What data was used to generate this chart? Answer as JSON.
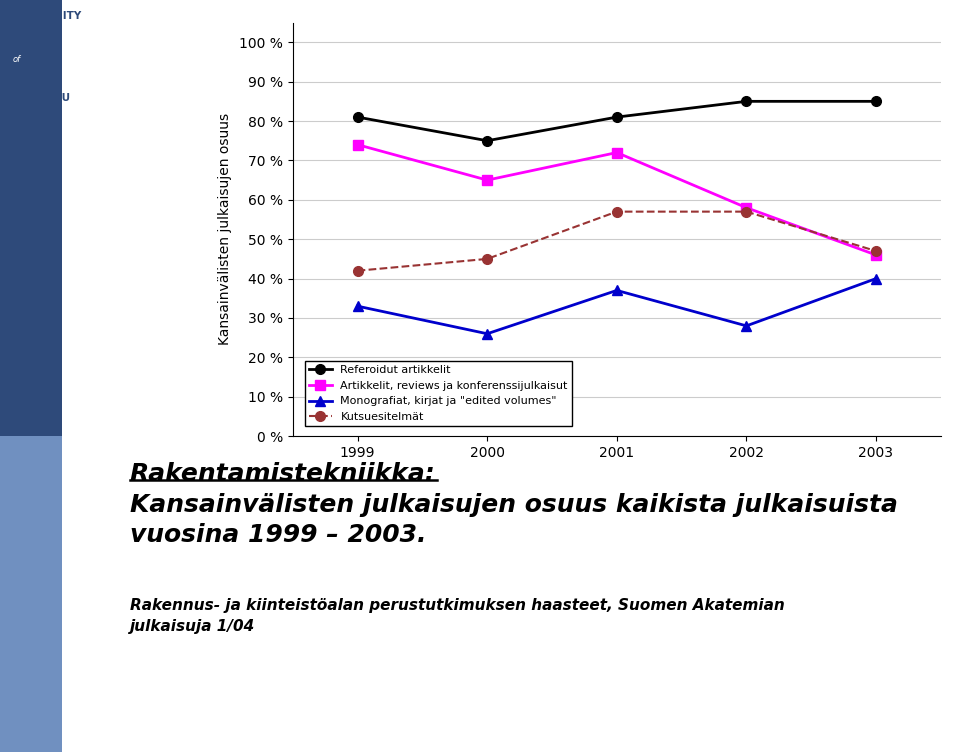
{
  "years": [
    1999,
    2000,
    2001,
    2002,
    2003
  ],
  "series_order": [
    "Referoidut artikkelit",
    "Artikkelit, reviews ja konferenssijulkaisut",
    "Monografiat, kirjat ja \"edited volumes\"",
    "Kutsuesitelmät"
  ],
  "series": {
    "Referoidut artikkelit": {
      "values": [
        81,
        75,
        81,
        85,
        85
      ],
      "color": "#000000",
      "linestyle": "solid",
      "marker": "o",
      "linewidth": 2.0
    },
    "Artikkelit, reviews ja konferenssijulkaisut": {
      "values": [
        74,
        65,
        72,
        58,
        46
      ],
      "color": "#FF00FF",
      "linestyle": "solid",
      "marker": "s",
      "linewidth": 2.0
    },
    "Monografiat, kirjat ja \"edited volumes\"": {
      "values": [
        33,
        26,
        37,
        28,
        40
      ],
      "color": "#0000CC",
      "linestyle": "solid",
      "marker": "^",
      "linewidth": 2.0
    },
    "Kutsuesitelmät": {
      "values": [
        42,
        45,
        57,
        57,
        47
      ],
      "color": "#993333",
      "linestyle": "dashed",
      "marker": "o",
      "linewidth": 1.5
    }
  },
  "ylabel": "Kansainvälisten julkaisujen osuus",
  "yticks": [
    0,
    10,
    20,
    30,
    40,
    50,
    60,
    70,
    80,
    90,
    100
  ],
  "ytick_labels": [
    "0 %",
    "10 %",
    "20 %",
    "30 %",
    "40 %",
    "50 %",
    "60 %",
    "70 %",
    "80 %",
    "90 %",
    "100 %"
  ],
  "ylim": [
    0,
    105
  ],
  "background_color": "#FFFFFF",
  "grid_color": "#CCCCCC",
  "title1": "Rakentamistekniikka:",
  "title2": "Kansainvälisten julkaisujen osuus kaikista julkaisuista\nvuosina 1999 – 2003.",
  "subtitle": "Rakennus- ja kiinteistöalan perustutkimuksen haasteet, Suomen Akatemian\njulkaisuja 1/04",
  "sidebar_dark": "#2E4A7A",
  "sidebar_light": "#7090C0"
}
